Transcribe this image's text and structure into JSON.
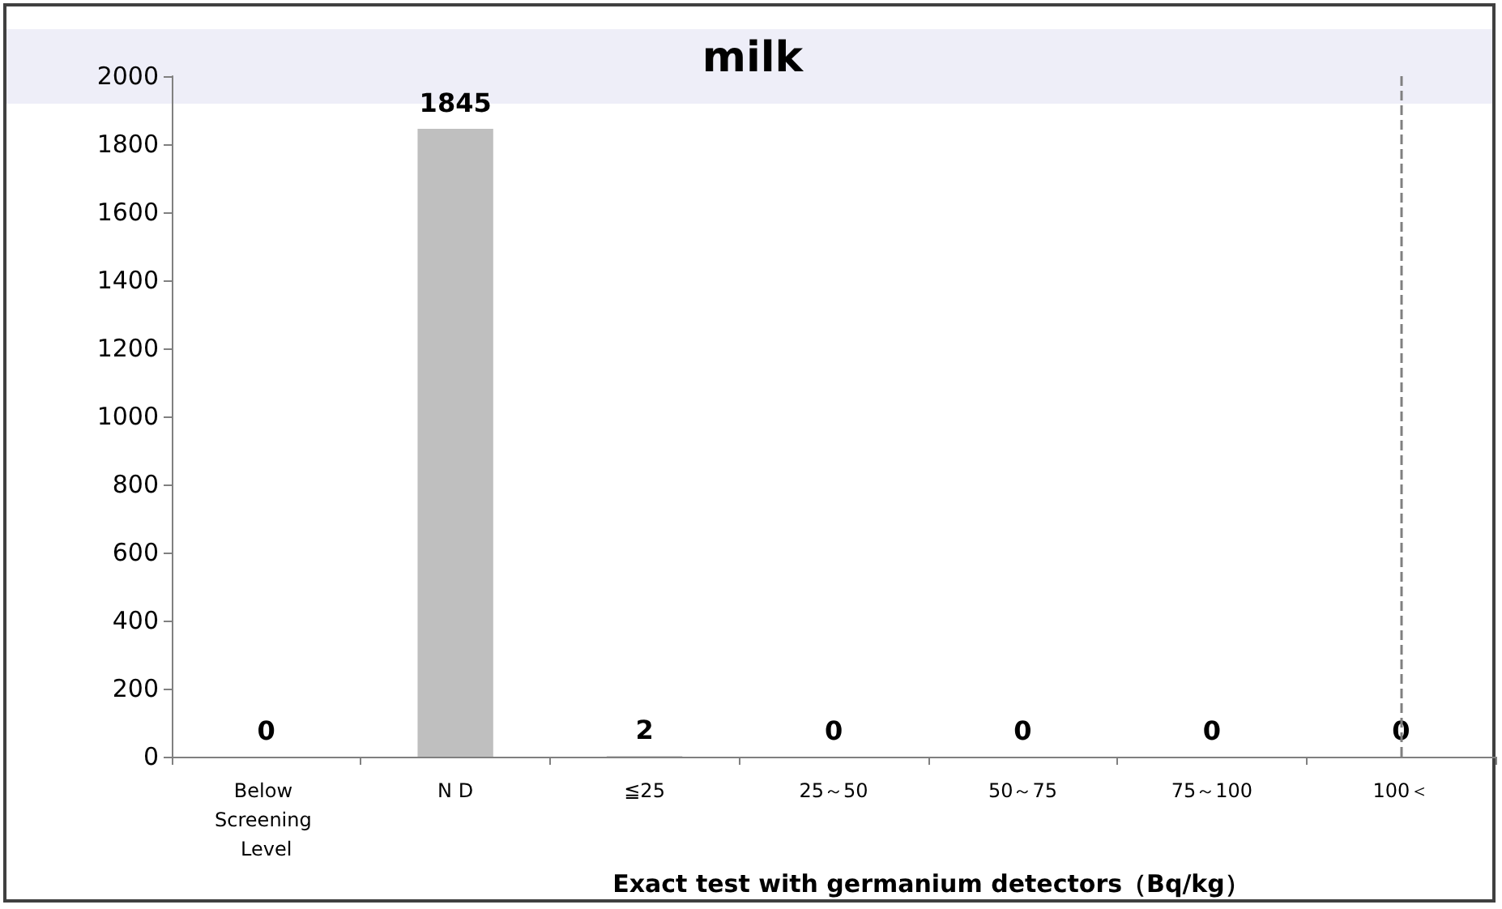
{
  "chart_data": {
    "type": "bar",
    "title": "milk",
    "xlabel": "Exact test with germanium detectors（Bq/kg）",
    "categories": [
      "Below Screening Level",
      "N D",
      "≦25",
      "25～50",
      "50～75",
      "75～100",
      "100＜"
    ],
    "values": [
      0,
      1845,
      2,
      0,
      0,
      0,
      0
    ],
    "color": "#bfbfbf",
    "data_labels": true,
    "ylim": [
      0,
      2000
    ],
    "yticks": [
      0,
      200,
      400,
      600,
      800,
      1000,
      1200,
      1400,
      1600,
      1800,
      2000
    ],
    "grid": false,
    "ref_lines": [
      {
        "axis": "x",
        "value": "100＜",
        "color": "#808080",
        "line_style": "dashed"
      }
    ]
  }
}
